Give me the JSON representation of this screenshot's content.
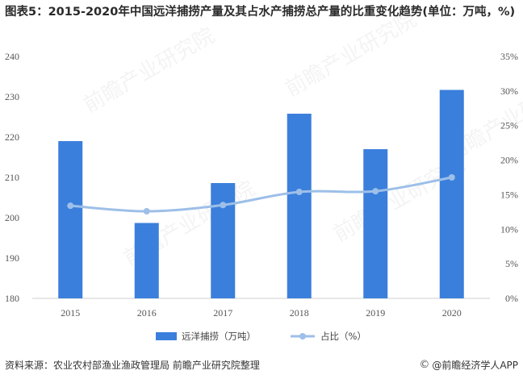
{
  "title": "图表5：2015-2020年中国远洋捕捞产量及其占水产捕捞总产量的比重变化趋势(单位：万吨，%)",
  "footer": {
    "source": "资料来源：农业农村部渔业渔政管理局 前瞻产业研究院整理",
    "brand": "@前瞻经济学人APP",
    "brand_icon": "copyright-icon"
  },
  "watermark": "前瞻产业研究院",
  "chart_data": {
    "type": "bar",
    "categories": [
      "2015",
      "2016",
      "2017",
      "2018",
      "2019",
      "2020"
    ],
    "series": [
      {
        "name": "远洋捕捞（万吨）",
        "type": "bar",
        "axis": "left",
        "color": "#3b7fdc",
        "values": [
          219.0,
          198.7,
          208.6,
          225.8,
          217.0,
          231.7
        ]
      },
      {
        "name": "占比（%）",
        "type": "line",
        "axis": "right",
        "color": "#9dbfe8",
        "values": [
          13.4,
          12.6,
          13.5,
          15.4,
          15.5,
          17.5
        ]
      }
    ],
    "ylim_left": [
      180,
      240
    ],
    "yticks_left": [
      180,
      190,
      200,
      210,
      220,
      230,
      240
    ],
    "ylim_right": [
      0,
      35
    ],
    "yticks_right": [
      "0%",
      "5%",
      "10%",
      "15%",
      "20%",
      "25%",
      "30%",
      "35%"
    ],
    "grid": false,
    "legend_position": "bottom"
  }
}
